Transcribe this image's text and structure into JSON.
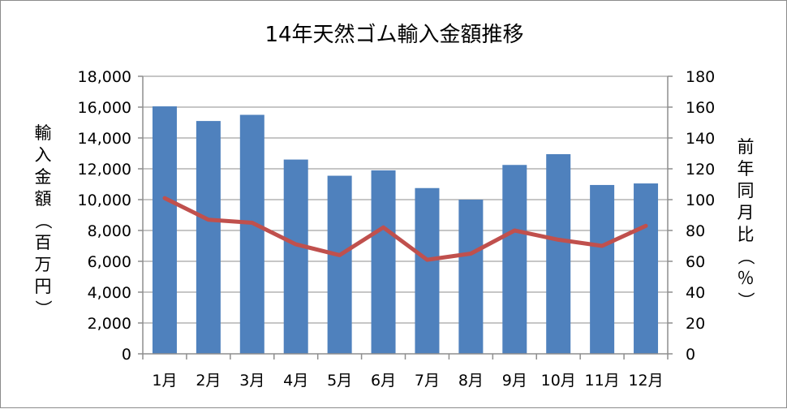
{
  "chart_data": {
    "type": "bar",
    "title": "14年天然ゴム輸入金額推移",
    "categories": [
      "1月",
      "2月",
      "3月",
      "4月",
      "5月",
      "6月",
      "7月",
      "8月",
      "9月",
      "10月",
      "11月",
      "12月"
    ],
    "series": [
      {
        "type": "bar",
        "axis": "left",
        "color": "#4f81bd",
        "values": [
          16050,
          15100,
          15500,
          12600,
          11550,
          11900,
          10750,
          10000,
          12250,
          12950,
          10950,
          11050
        ]
      },
      {
        "type": "line",
        "axis": "right",
        "color": "#c0504d",
        "values": [
          101,
          87,
          85,
          71,
          64,
          82,
          61,
          65,
          80,
          74,
          70,
          83
        ]
      }
    ],
    "ylabel_left": "輸入金額（百万円）",
    "ylabel_right": "前年同月比（％）",
    "ylim_left": [
      0,
      18000
    ],
    "ylim_right": [
      0,
      180
    ],
    "yticks_left": [
      "0",
      "2,000",
      "4,000",
      "6,000",
      "8,000",
      "10,000",
      "12,000",
      "14,000",
      "16,000",
      "18,000"
    ],
    "yticks_right": [
      "0",
      "20",
      "40",
      "60",
      "80",
      "100",
      "120",
      "140",
      "160",
      "180"
    ],
    "grid": true,
    "legend": "none"
  }
}
